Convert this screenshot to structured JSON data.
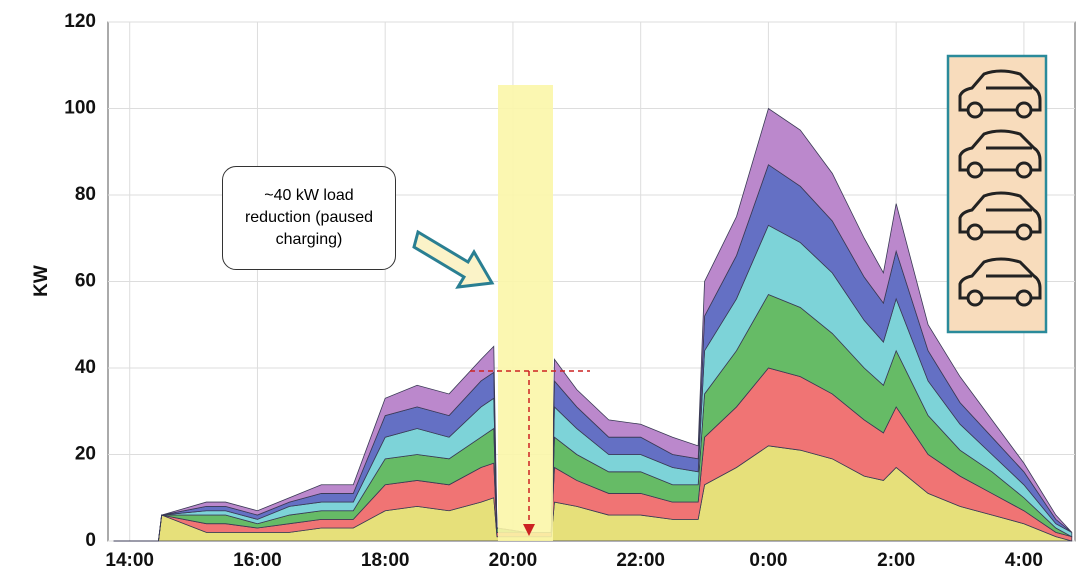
{
  "chart_data": {
    "type": "stacked-area",
    "y_label": "KW",
    "annotation": "~40 kW load reduction (paused charging)",
    "xlim": [
      13.66,
      28.8
    ],
    "xticks": [
      {
        "value": 14,
        "label": "14:00"
      },
      {
        "value": 16,
        "label": "16:00"
      },
      {
        "value": 18,
        "label": "18:00"
      },
      {
        "value": 20,
        "label": "20:00"
      },
      {
        "value": 22,
        "label": "22:00"
      },
      {
        "value": 24,
        "label": "0:00"
      },
      {
        "value": 26,
        "label": "2:00"
      },
      {
        "value": 28,
        "label": "4:00"
      }
    ],
    "ylim": [
      0,
      120
    ],
    "yticks": [
      0,
      20,
      40,
      60,
      80,
      100,
      120
    ],
    "grid": true,
    "x": [
      13.75,
      14.45,
      14.5,
      15.2,
      15.5,
      16.0,
      16.5,
      17.0,
      17.5,
      18.0,
      18.5,
      19.0,
      19.5,
      19.7,
      19.75,
      20.2,
      20.6,
      20.65,
      21.0,
      21.5,
      22.0,
      22.5,
      22.9,
      23.0,
      23.5,
      24.0,
      24.5,
      25.0,
      25.5,
      25.8,
      26.0,
      26.5,
      27.0,
      27.5,
      28.0,
      28.5,
      28.75
    ],
    "series": [
      {
        "color": "#e6e07a",
        "values": [
          0,
          0,
          6,
          2,
          2,
          2,
          2,
          3,
          3,
          7,
          8,
          7,
          9,
          10,
          1,
          1,
          1,
          9,
          8,
          6,
          6,
          5,
          5,
          13,
          17,
          22,
          21,
          19,
          15,
          14,
          17,
          11,
          8,
          6,
          4,
          1,
          0
        ]
      },
      {
        "color": "#f07474",
        "values": [
          0,
          0,
          0,
          2,
          2,
          1,
          2,
          2,
          2,
          6,
          6,
          6,
          8,
          8,
          1,
          1,
          1,
          8,
          6,
          5,
          5,
          4,
          4,
          11,
          14,
          18,
          17,
          15,
          13,
          11,
          14,
          9,
          7,
          5,
          3,
          1,
          1
        ]
      },
      {
        "color": "#66bb66",
        "values": [
          0,
          0,
          0,
          2,
          2,
          1,
          2,
          2,
          2,
          6,
          6,
          6,
          7,
          8,
          1,
          0,
          0,
          7,
          6,
          5,
          5,
          4,
          4,
          10,
          13,
          17,
          16,
          14,
          12,
          11,
          13,
          9,
          6,
          5,
          3,
          1,
          0
        ]
      },
      {
        "color": "#7dd3d8",
        "values": [
          0,
          0,
          0,
          1,
          1,
          1,
          2,
          2,
          2,
          5,
          6,
          5,
          7,
          7,
          0,
          0,
          0,
          7,
          6,
          4,
          4,
          4,
          3,
          10,
          12,
          16,
          15,
          14,
          11,
          10,
          12,
          8,
          6,
          4,
          3,
          1,
          1
        ]
      },
      {
        "color": "#6470c4",
        "values": [
          0,
          0,
          0,
          1,
          1,
          1,
          1,
          2,
          2,
          5,
          5,
          5,
          6,
          6,
          0,
          0,
          0,
          6,
          5,
          4,
          4,
          3,
          3,
          8,
          10,
          14,
          13,
          12,
          10,
          9,
          11,
          7,
          5,
          4,
          3,
          1,
          0
        ]
      },
      {
        "color": "#bb88cc",
        "values": [
          0,
          0,
          0,
          1,
          1,
          1,
          1,
          2,
          2,
          4,
          5,
          5,
          5,
          6,
          0,
          0,
          0,
          5,
          4,
          4,
          3,
          4,
          3,
          8,
          9,
          13,
          13,
          11,
          9,
          7,
          11,
          6,
          6,
          4,
          2,
          1,
          0
        ]
      }
    ]
  }
}
